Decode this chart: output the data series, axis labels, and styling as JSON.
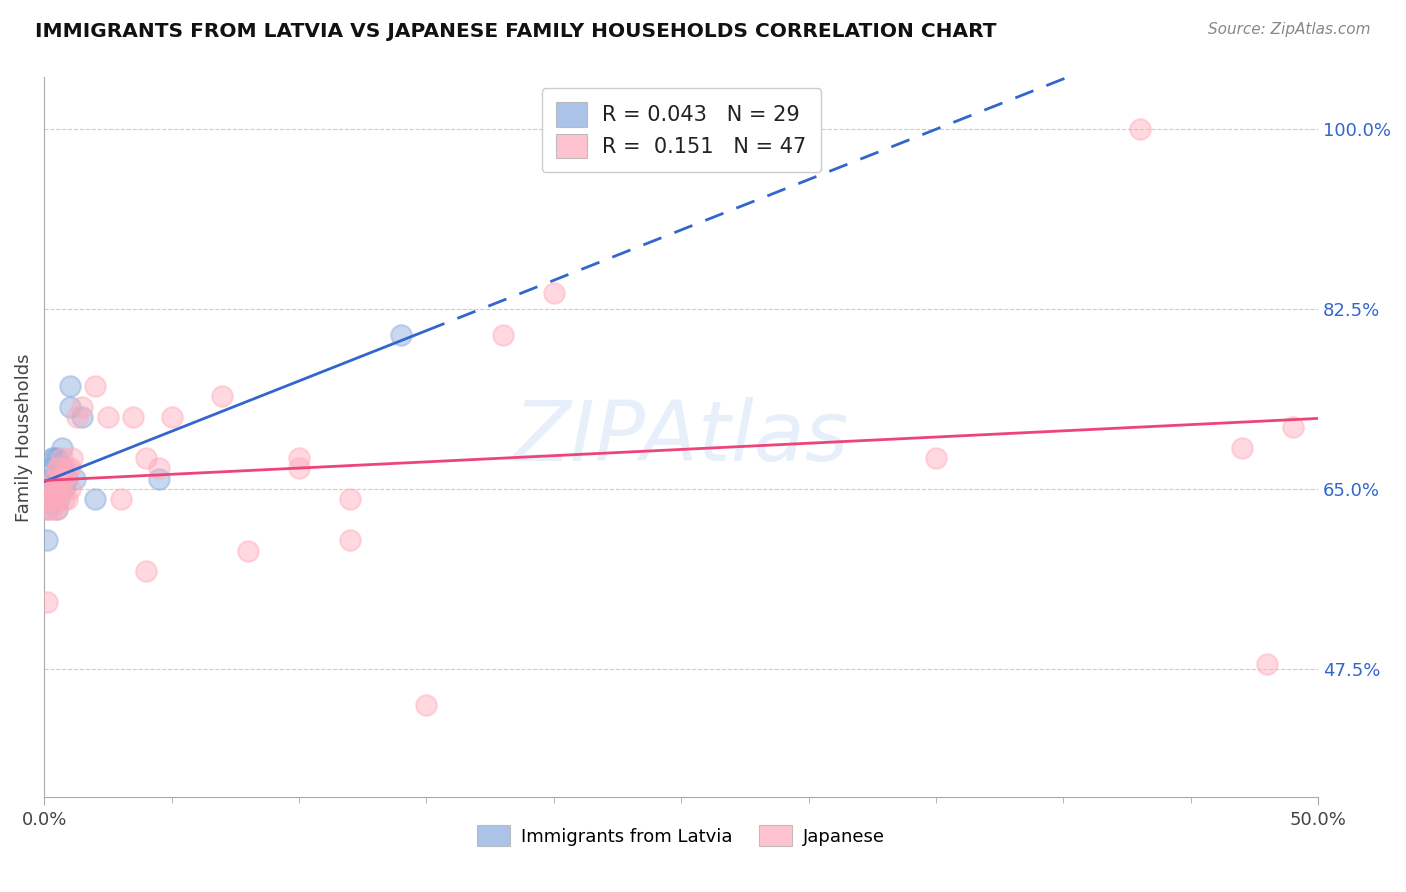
{
  "title": "IMMIGRANTS FROM LATVIA VS JAPANESE FAMILY HOUSEHOLDS CORRELATION CHART",
  "source": "Source: ZipAtlas.com",
  "xlabel": "",
  "ylabel": "Family Households",
  "xlim": [
    0.0,
    0.5
  ],
  "ylim": [
    0.35,
    1.05
  ],
  "xtick_labels": [
    "0.0%",
    "50.0%"
  ],
  "ytick_values_right": [
    0.475,
    0.65,
    0.825,
    1.0
  ],
  "grid_color": "#cccccc",
  "bg_color": "#ffffff",
  "blue_color": "#88aadd",
  "pink_color": "#ffaabb",
  "blue_line_color": "#3366cc",
  "pink_line_color": "#ee4477",
  "legend_R_blue": "0.043",
  "legend_N_blue": "29",
  "legend_R_pink": "0.151",
  "legend_N_pink": "47",
  "blue_scatter_x": [
    0.001,
    0.001,
    0.002,
    0.003,
    0.003,
    0.004,
    0.004,
    0.004,
    0.005,
    0.005,
    0.005,
    0.005,
    0.006,
    0.006,
    0.006,
    0.007,
    0.007,
    0.007,
    0.007,
    0.008,
    0.008,
    0.009,
    0.01,
    0.01,
    0.012,
    0.015,
    0.02,
    0.045,
    0.14
  ],
  "blue_scatter_y": [
    0.63,
    0.6,
    0.66,
    0.67,
    0.68,
    0.64,
    0.66,
    0.68,
    0.63,
    0.65,
    0.66,
    0.68,
    0.64,
    0.65,
    0.67,
    0.65,
    0.66,
    0.67,
    0.69,
    0.65,
    0.67,
    0.66,
    0.73,
    0.75,
    0.66,
    0.72,
    0.64,
    0.66,
    0.8
  ],
  "pink_scatter_x": [
    0.001,
    0.001,
    0.002,
    0.002,
    0.003,
    0.003,
    0.004,
    0.004,
    0.005,
    0.005,
    0.005,
    0.006,
    0.006,
    0.007,
    0.007,
    0.007,
    0.008,
    0.008,
    0.009,
    0.009,
    0.01,
    0.01,
    0.011,
    0.013,
    0.015,
    0.02,
    0.025,
    0.03,
    0.035,
    0.04,
    0.04,
    0.045,
    0.05,
    0.07,
    0.08,
    0.1,
    0.1,
    0.12,
    0.12,
    0.15,
    0.18,
    0.2,
    0.35,
    0.43,
    0.47,
    0.48,
    0.49
  ],
  "pink_scatter_y": [
    0.54,
    0.64,
    0.63,
    0.65,
    0.63,
    0.65,
    0.64,
    0.66,
    0.63,
    0.65,
    0.67,
    0.65,
    0.67,
    0.65,
    0.66,
    0.68,
    0.64,
    0.66,
    0.64,
    0.67,
    0.65,
    0.67,
    0.68,
    0.72,
    0.73,
    0.75,
    0.72,
    0.64,
    0.72,
    0.68,
    0.57,
    0.67,
    0.72,
    0.74,
    0.59,
    0.67,
    0.68,
    0.6,
    0.64,
    0.44,
    0.8,
    0.84,
    0.68,
    1.0,
    0.69,
    0.48,
    0.71
  ],
  "watermark": "ZIPAtlas",
  "legend_label_blue": "Immigrants from Latvia",
  "legend_label_pink": "Japanese",
  "blue_line_x_end": 0.15
}
